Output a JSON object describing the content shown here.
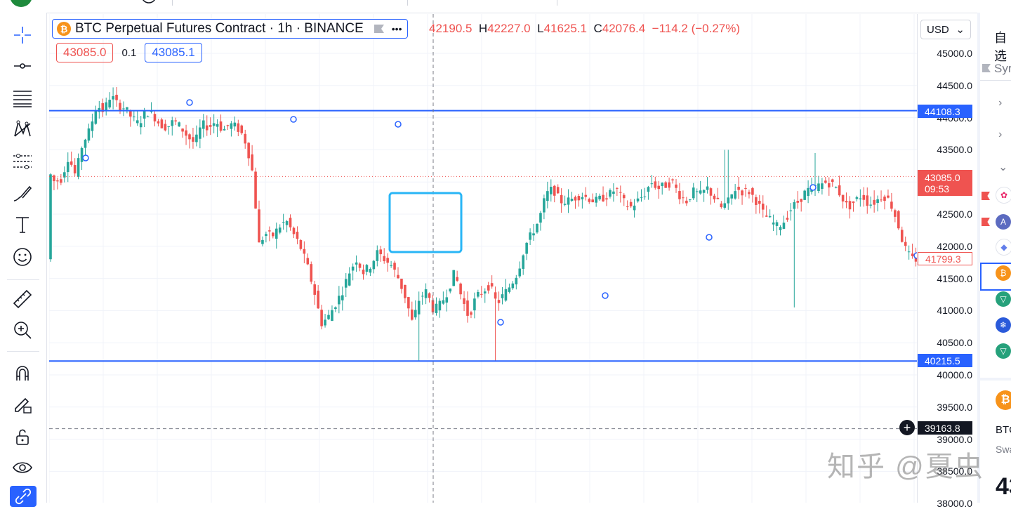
{
  "legend": {
    "title": "BTC Perpetual Futures Contract · 1h · BINANCE",
    "more": "•••",
    "badge": "₿"
  },
  "ohlc": {
    "open": "42190.5",
    "high_label": "H",
    "high": "42227.0",
    "low_label": "L",
    "low": "41625.1",
    "close_label": "C",
    "close": "42076.4",
    "change": "−114.2 (−0.27%)"
  },
  "trade": {
    "sell": "43085.0",
    "spread": "0.1",
    "buy": "43085.1"
  },
  "currency": {
    "value": "USD",
    "caret": "⌄"
  },
  "price_axis": {
    "labels": [
      "45000.0",
      "44500.0",
      "44000.0",
      "43500.0",
      "43000.0",
      "42500.0",
      "42000.0",
      "41500.0",
      "41000.0",
      "40500.0",
      "40000.0",
      "39500.0",
      "39000.0",
      "38500.0",
      "38000.0"
    ],
    "tags": {
      "line_upper": "44108.3",
      "current_price": "43085.0",
      "countdown": "09:53",
      "last_close": "41799.3",
      "line_lower": "40215.5",
      "crosshair": "39163.8"
    }
  },
  "chart_data": {
    "type": "candlestick",
    "symbol": "BTC Perpetual Futures Contract",
    "interval": "1h",
    "exchange": "BINANCE",
    "ylim": [
      37800,
      45500
    ],
    "horizontal_lines": [
      44108.3,
      40215.5
    ],
    "current_price": 43085.0,
    "crosshair_price": 39163.8,
    "colors": {
      "up": "#26a69a",
      "down": "#ef5350",
      "line": "#2962ff",
      "highlight": "#29b6f6"
    }
  },
  "right_panel": {
    "title": "自选",
    "symbol_header": "Syr",
    "detail_symbol": "BTC",
    "detail_type": "Swa",
    "detail_price": "43"
  },
  "watermark": "知乎 @夏虫",
  "icons": [
    "crosshair-icon",
    "trend-line-icon",
    "fib-icon",
    "pattern-icon",
    "forecast-icon",
    "brush-icon",
    "text-icon",
    "emoji-icon",
    "ruler-icon",
    "zoom-icon",
    "magnet-icon",
    "lock-pencil-icon",
    "unlock-icon",
    "eye-icon",
    "link-icon"
  ]
}
